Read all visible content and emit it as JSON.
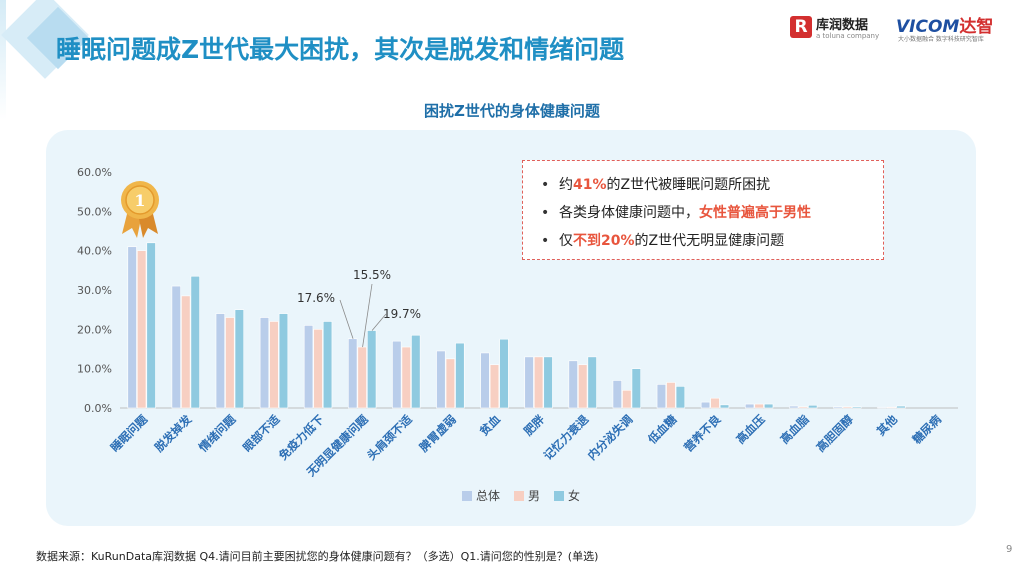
{
  "page": {
    "title": "睡眠问题成Z世代最大困扰，其次是脱发和情绪问题",
    "page_number": "9",
    "footer": "数据来源：KuRunData库润数据 Q4.请问目前主要困扰您的身体健康问题有？（多选）Q1.请问您的性别是？(单选)"
  },
  "logos": {
    "kurun": {
      "mark": "R",
      "name": "库润数据",
      "sub": "a toluna company"
    },
    "vicom": {
      "name": "VICOM",
      "name_cn": "达智",
      "sub": "大小数据融合 数字科技研究智库"
    }
  },
  "notes": [
    {
      "parts": [
        {
          "text": "约",
          "hl": false
        },
        {
          "text": "41%",
          "hl": true
        },
        {
          "text": "的Z世代被睡眠问题所困扰",
          "hl": false
        }
      ]
    },
    {
      "parts": [
        {
          "text": "各类身体健康问题中，",
          "hl": false
        },
        {
          "text": "女性普遍高于男性",
          "hl": true
        }
      ]
    },
    {
      "parts": [
        {
          "text": "仅",
          "hl": false
        },
        {
          "text": "不到20%",
          "hl": true
        },
        {
          "text": "的Z世代无明显健康问题",
          "hl": false
        }
      ]
    }
  ],
  "medal": {
    "label": "1"
  },
  "chart_data": {
    "type": "bar",
    "title": "困扰Z世代的身体健康问题",
    "categories": [
      "睡眠问题",
      "脱发掉发",
      "情绪问题",
      "眼部不适",
      "免疫力低下",
      "无明显健康问题",
      "头肩颈不适",
      "脾胃虚弱",
      "贫血",
      "肥胖",
      "记忆力衰退",
      "内分泌失调",
      "低血糖",
      "营养不良",
      "高血压",
      "高血脂",
      "高胆固醇",
      "其他",
      "糖尿病"
    ],
    "series": [
      {
        "name": "总体",
        "color": "#b9cdea",
        "values": [
          41.0,
          31.0,
          24.0,
          23.0,
          21.0,
          17.6,
          17.0,
          14.5,
          14.0,
          13.0,
          12.0,
          7.0,
          6.0,
          1.5,
          1.0,
          0.5,
          0.3,
          0.2,
          0.0
        ]
      },
      {
        "name": "男",
        "color": "#f7cfc2",
        "values": [
          40.0,
          28.5,
          23.0,
          22.0,
          20.0,
          15.5,
          15.5,
          12.5,
          11.0,
          13.0,
          11.0,
          4.5,
          6.5,
          2.5,
          1.0,
          0.3,
          0.3,
          0.2,
          0.0
        ]
      },
      {
        "name": "女",
        "color": "#8fcae0",
        "values": [
          42.0,
          33.5,
          25.0,
          24.0,
          22.0,
          19.7,
          18.5,
          16.5,
          17.5,
          13.0,
          13.0,
          10.0,
          5.5,
          0.8,
          1.0,
          0.7,
          0.3,
          0.5,
          0.0
        ]
      }
    ],
    "y_ticks": [
      "0.0%",
      "10.0%",
      "20.0%",
      "30.0%",
      "40.0%",
      "50.0%",
      "60.0%"
    ],
    "ylim": [
      0,
      60
    ],
    "grid": false,
    "legend": "bottom-center",
    "annotations": [
      {
        "text": "17.6%",
        "category": "无明显健康问题",
        "series": "总体"
      },
      {
        "text": "15.5%",
        "category": "无明显健康问题",
        "series": "男"
      },
      {
        "text": "19.7%",
        "category": "无明显健康问题",
        "series": "女"
      }
    ]
  }
}
